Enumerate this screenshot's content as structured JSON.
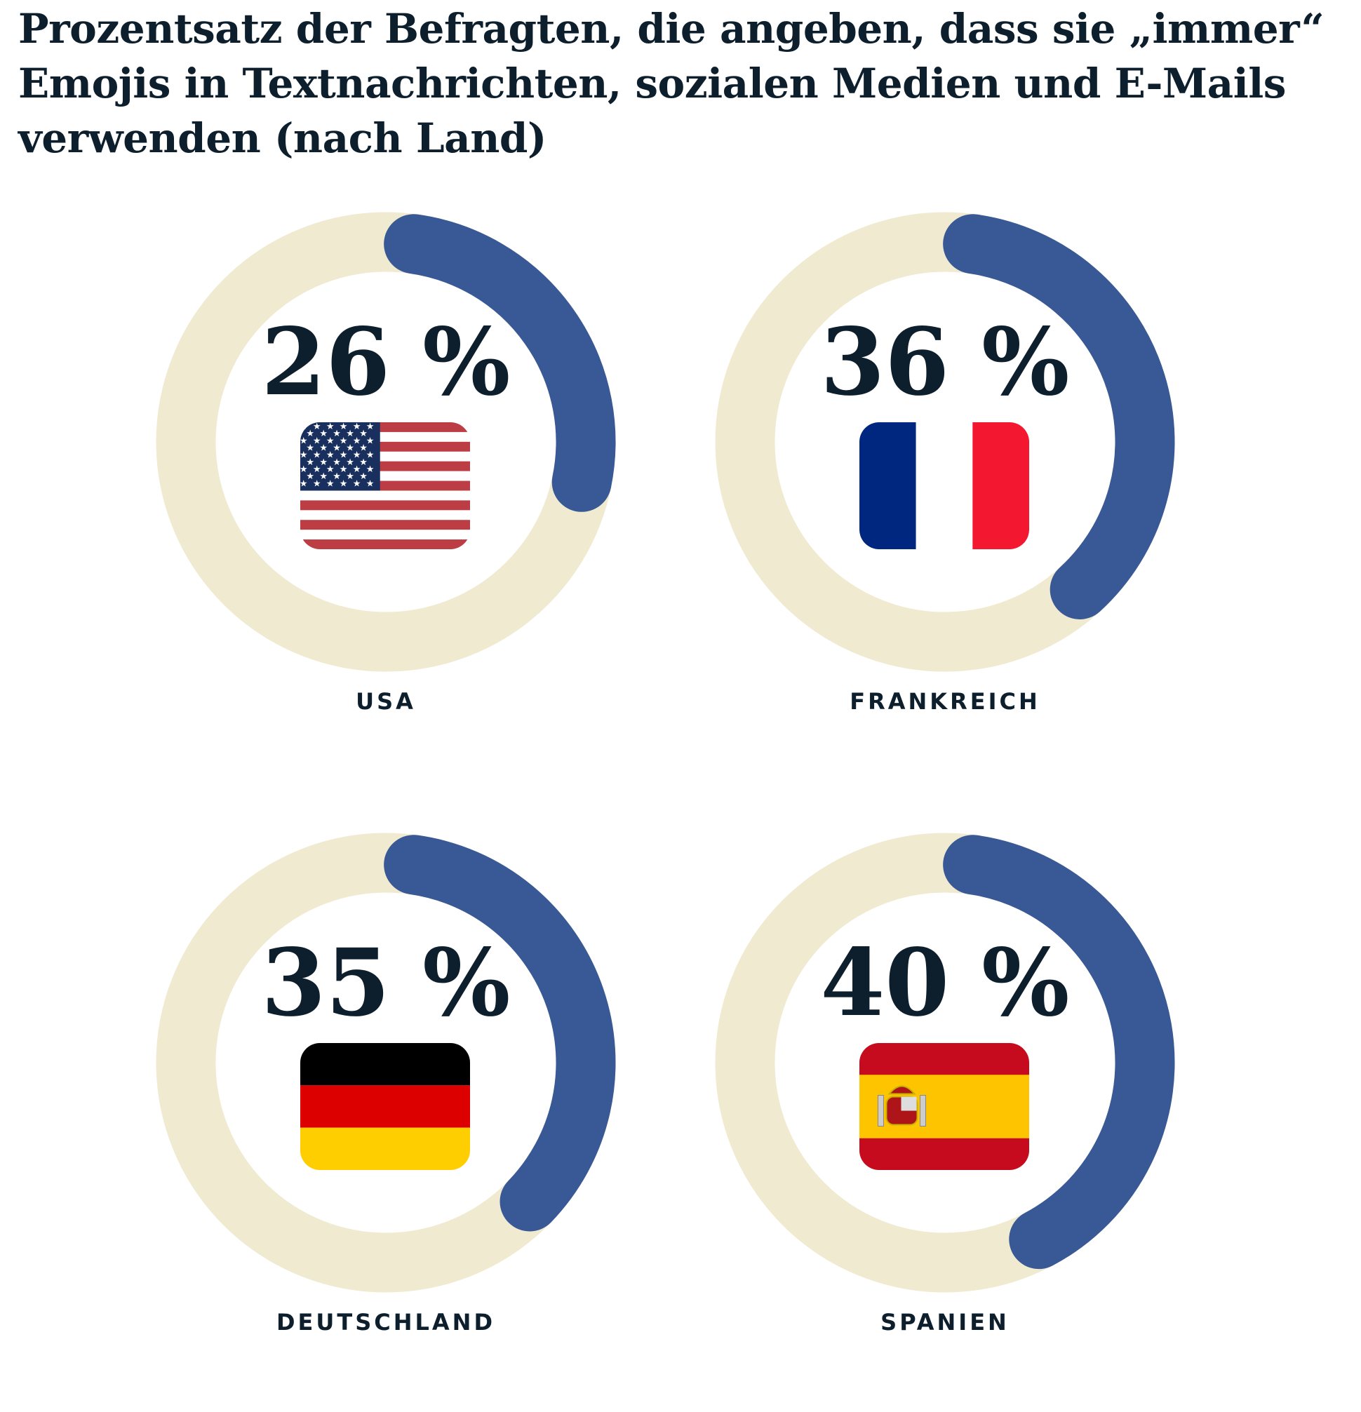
{
  "title": "Prozentsatz der Befragten, die angeben, dass sie „immer“ Emojis in Textnachrichten, sozialen Medien und E-Mails verwenden (nach Land)",
  "chart_data": {
    "type": "donut",
    "unit": "%",
    "range": [
      0,
      100
    ],
    "colors": {
      "value": "#385996",
      "track": "#f0ead0",
      "text": "#0d1f2d"
    },
    "items": [
      {
        "country": "USA",
        "value": 26,
        "label": "26 %",
        "flag": "us-flag"
      },
      {
        "country": "FRANKREICH",
        "value": 36,
        "label": "36 %",
        "flag": "fr-flag"
      },
      {
        "country": "DEUTSCHLAND",
        "value": 35,
        "label": "35 %",
        "flag": "de-flag"
      },
      {
        "country": "SPANIEN",
        "value": 40,
        "label": "40 %",
        "flag": "es-flag"
      }
    ]
  }
}
